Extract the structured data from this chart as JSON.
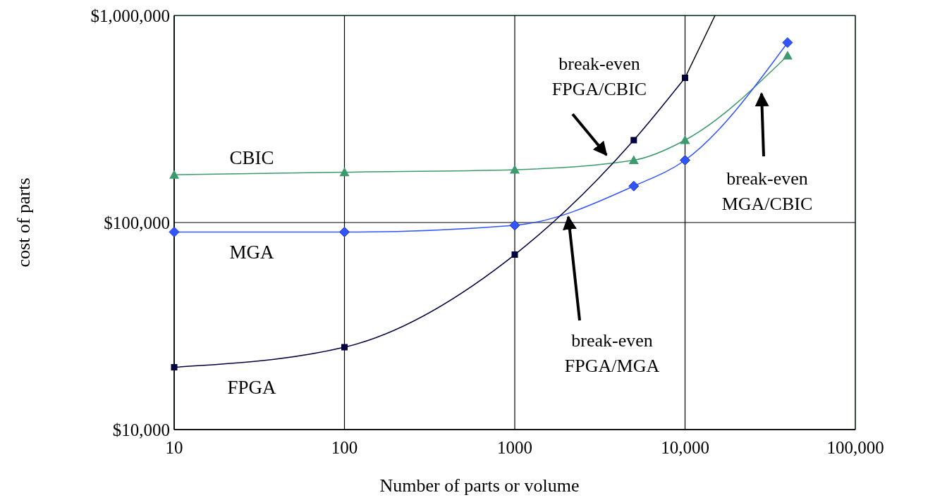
{
  "chart_data": {
    "type": "line",
    "xlabel": "Number of parts or volume",
    "ylabel": "cost of parts",
    "log": "xy",
    "grid": true,
    "xlim": [
      10,
      100000
    ],
    "xticks": [
      10,
      100,
      1000,
      {
        "value": 10000,
        "label": "10,000"
      },
      {
        "value": 100000,
        "label": "100,000"
      }
    ],
    "ylim": [
      10000,
      1000000
    ],
    "yticks": [
      {
        "value": 10000,
        "label": "$10,000"
      },
      {
        "value": 100000,
        "label": "$100,000"
      },
      {
        "value": 1000000,
        "label": "$1,000,000"
      }
    ],
    "series": [
      {
        "name": "CBIC",
        "color": "#3c9a6c",
        "marker": "triangle",
        "x": [
          10,
          100,
          1000,
          5000,
          10000,
          40000
        ],
        "values": [
          170000,
          175000,
          180000,
          200000,
          250000,
          640000
        ]
      },
      {
        "name": "MGA",
        "color": "#3355ff",
        "marker": "diamond",
        "x": [
          10,
          100,
          1000,
          5000,
          10000,
          40000
        ],
        "values": [
          90000,
          90000,
          97000,
          150000,
          200000,
          740000
        ]
      },
      {
        "name": "FPGA",
        "color": "#000040",
        "marker": "square",
        "x": [
          10,
          100,
          1000,
          5000,
          10000
        ],
        "values": [
          20000,
          25000,
          70000,
          250000,
          500000
        ]
      },
      {
        "color": "#000000",
        "marker": "none",
        "x": [
          10000,
          15000
        ],
        "values": [
          500000,
          1000000
        ]
      }
    ],
    "annotations": [
      "break-even\nFPGA/CBIC",
      "break-even\nFPGA/MGA",
      "break-even\nMGA/CBIC"
    ]
  }
}
